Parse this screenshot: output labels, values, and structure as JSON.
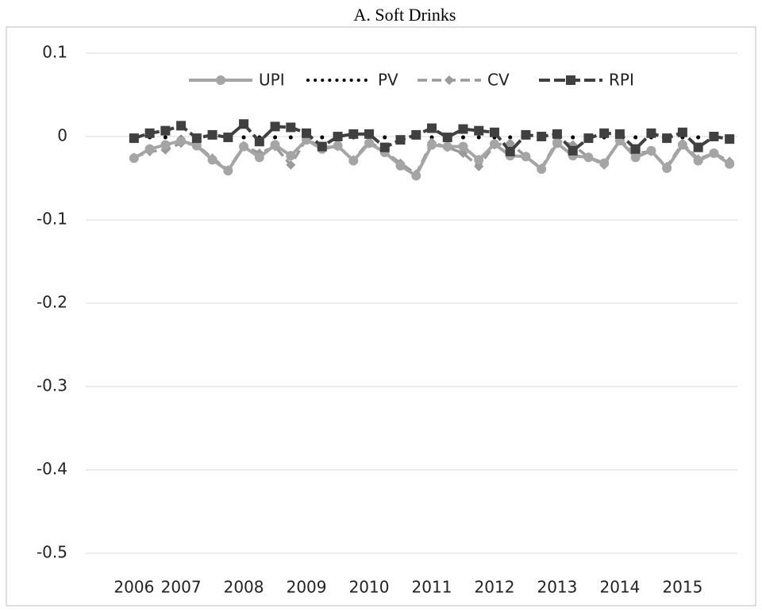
{
  "chart_data": {
    "type": "line",
    "title": "A.  Soft Drinks",
    "categories": [
      "2006",
      null,
      null,
      "2007",
      null,
      null,
      null,
      "2008",
      null,
      null,
      null,
      "2009",
      null,
      null,
      null,
      "2010",
      null,
      null,
      null,
      "2011",
      null,
      null,
      null,
      "2012",
      null,
      null,
      null,
      "2013",
      null,
      null,
      null,
      "2014",
      null,
      null,
      null,
      "2015",
      null,
      null,
      null
    ],
    "series": [
      {
        "name": "UPI",
        "color": "#a5a5a5",
        "values": [
          -0.026,
          -0.015,
          -0.01,
          -0.005,
          -0.011,
          -0.028,
          -0.041,
          -0.012,
          -0.025,
          -0.01,
          -0.023,
          -0.004,
          -0.015,
          -0.011,
          -0.029,
          -0.008,
          -0.019,
          -0.035,
          -0.047,
          -0.01,
          -0.012,
          -0.012,
          -0.028,
          -0.009,
          -0.023,
          -0.024,
          -0.039,
          -0.008,
          -0.023,
          -0.025,
          -0.032,
          -0.005,
          -0.025,
          -0.017,
          -0.038,
          -0.01,
          -0.029,
          -0.02,
          -0.033
        ]
      },
      {
        "name": "PV",
        "color": "#000000",
        "values": [
          -0.001,
          -0.001,
          -0.001,
          -0.001,
          -0.001,
          -0.001,
          -0.001,
          -0.001,
          -0.001,
          -0.001,
          -0.001,
          -0.001,
          -0.001,
          -0.001,
          -0.001,
          -0.001,
          -0.001,
          -0.001,
          -0.001,
          -0.001,
          -0.001,
          -0.001,
          -0.001,
          -0.001,
          -0.001,
          -0.001,
          -0.001,
          -0.001,
          -0.001,
          -0.001,
          -0.001,
          -0.001,
          -0.001,
          -0.001,
          -0.001,
          -0.001,
          -0.001,
          -0.001,
          -0.001
        ]
      },
      {
        "name": "CV",
        "color": "#9a9a9a",
        "values": [
          -0.025,
          -0.018,
          -0.016,
          -0.008,
          -0.01,
          -0.026,
          -0.04,
          -0.011,
          -0.02,
          -0.012,
          -0.034,
          -0.003,
          -0.013,
          -0.012,
          -0.028,
          -0.006,
          -0.018,
          -0.032,
          -0.045,
          -0.007,
          -0.013,
          -0.02,
          -0.036,
          -0.01,
          -0.008,
          -0.024,
          -0.038,
          -0.005,
          -0.01,
          -0.025,
          -0.034,
          -0.004,
          -0.02,
          -0.018,
          -0.036,
          -0.008,
          -0.027,
          -0.02,
          -0.03
        ]
      },
      {
        "name": "RPI",
        "color": "#404040",
        "values": [
          -0.002,
          0.004,
          0.007,
          0.013,
          -0.002,
          0.002,
          -0.001,
          0.015,
          -0.006,
          0.012,
          0.011,
          0.004,
          -0.012,
          0.0,
          0.003,
          0.003,
          -0.013,
          -0.004,
          0.002,
          0.01,
          -0.001,
          0.009,
          0.007,
          0.005,
          -0.018,
          0.002,
          0.0,
          0.003,
          -0.017,
          -0.002,
          0.004,
          0.003,
          -0.015,
          0.004,
          -0.002,
          0.005,
          -0.013,
          0.0,
          -0.003
        ]
      }
    ],
    "ylim": [
      -0.5,
      0.1
    ],
    "yticks": [
      -0.5,
      -0.4,
      -0.3,
      -0.2,
      -0.1,
      0,
      0.1
    ],
    "grid": true,
    "legend": "top"
  }
}
